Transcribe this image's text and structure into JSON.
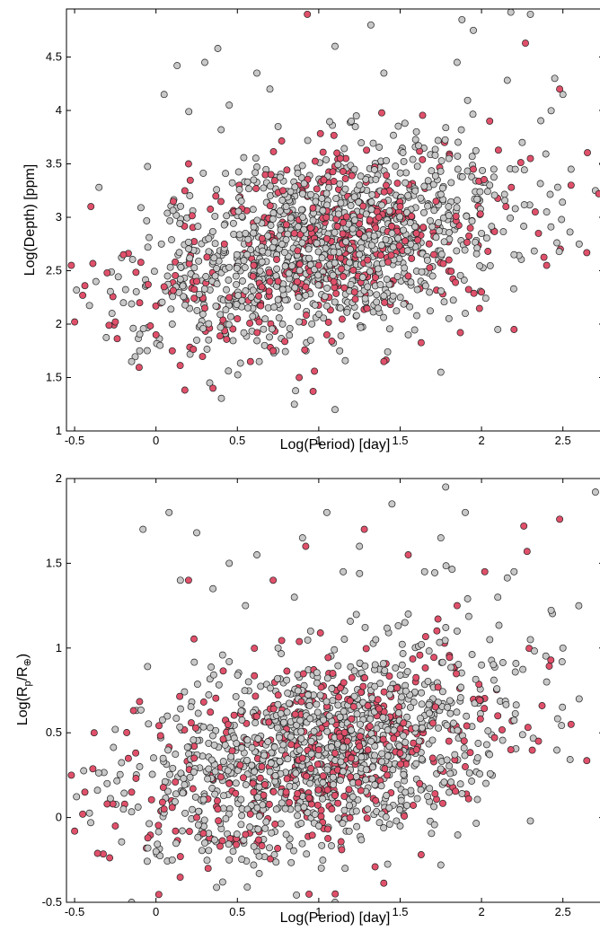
{
  "chart_data": [
    {
      "type": "scatter",
      "title": "",
      "xlabel": "Log(Period) [day]",
      "ylabel": "Log(Depth) [ppm]",
      "xlim": [
        -0.55,
        2.75
      ],
      "ylim": [
        1,
        4.95
      ],
      "xticks": [
        "-0.5",
        "0",
        "0.5",
        "1",
        "1.5",
        "2",
        "2.5"
      ],
      "yticks": [
        "1",
        "1.5",
        "2",
        "2.5",
        "3",
        "3.5",
        "4",
        "4.5"
      ],
      "grid": false,
      "legend": "none",
      "series": [
        {
          "color": "#c8c8c8",
          "points": [
            [
              -0.27,
              2.1
            ],
            [
              -0.2,
              2.2
            ],
            [
              -0.15,
              1.65
            ],
            [
              -0.1,
              1.75
            ],
            [
              -0.35,
              3.28
            ],
            [
              -0.05,
              2.72
            ],
            [
              0.1,
              2.0
            ],
            [
              0.15,
              2.42
            ],
            [
              0.25,
              1.85
            ],
            [
              0.33,
              1.45
            ],
            [
              0.4,
              3.82
            ],
            [
              0.45,
              4.05
            ],
            [
              0.55,
              2.85
            ],
            [
              0.6,
              3.35
            ],
            [
              0.7,
              4.2
            ],
            [
              0.75,
              3.85
            ],
            [
              0.8,
              3.1
            ],
            [
              0.85,
              1.25
            ],
            [
              0.95,
              1.85
            ],
            [
              1.1,
              1.2
            ],
            [
              1.1,
              4.6
            ],
            [
              1.2,
              3.9
            ],
            [
              1.25,
              3.3
            ],
            [
              1.3,
              2.35
            ],
            [
              1.4,
              4.35
            ],
            [
              1.45,
              2.85
            ],
            [
              1.55,
              1.9
            ],
            [
              1.6,
              3.8
            ],
            [
              1.7,
              2.45
            ],
            [
              1.75,
              1.55
            ],
            [
              1.8,
              3.55
            ],
            [
              1.85,
              4.45
            ],
            [
              1.9,
              2.1
            ],
            [
              1.95,
              4.75
            ],
            [
              2.0,
              2.85
            ],
            [
              2.05,
              3.3
            ],
            [
              2.1,
              1.95
            ],
            [
              2.2,
              2.65
            ],
            [
              2.25,
              3.7
            ],
            [
              2.3,
              4.9
            ],
            [
              2.4,
              3.05
            ],
            [
              2.5,
              4.15
            ],
            [
              2.55,
              3.45
            ],
            [
              2.6,
              2.75
            ],
            [
              2.7,
              3.25
            ],
            [
              0.05,
              4.15
            ],
            [
              0.13,
              4.42
            ],
            [
              0.3,
              4.45
            ],
            [
              0.38,
              4.58
            ],
            [
              0.62,
              4.35
            ],
            [
              1.32,
              4.8
            ],
            [
              1.88,
              4.85
            ],
            [
              2.18,
              4.92
            ],
            [
              2.45,
              4.3
            ]
          ]
        },
        {
          "color": "#e0506a",
          "points": [
            [
              -0.52,
              2.55
            ],
            [
              -0.5,
              2.02
            ],
            [
              -0.45,
              2.27
            ],
            [
              -0.4,
              3.1
            ],
            [
              -0.3,
              2.48
            ],
            [
              -0.25,
              2.02
            ],
            [
              -0.2,
              2.65
            ],
            [
              -0.1,
              2.2
            ],
            [
              0.0,
              1.9
            ],
            [
              0.05,
              2.35
            ],
            [
              0.1,
              1.75
            ],
            [
              0.2,
              3.5
            ],
            [
              0.3,
              2.15
            ],
            [
              0.35,
              1.4
            ],
            [
              0.42,
              2.75
            ],
            [
              0.5,
              2.05
            ],
            [
              0.58,
              1.65
            ],
            [
              0.65,
              2.35
            ],
            [
              0.72,
              1.75
            ],
            [
              0.78,
              3.25
            ],
            [
              0.88,
              1.5
            ],
            [
              0.93,
              4.9
            ],
            [
              1.0,
              2.55
            ],
            [
              1.05,
              1.9
            ],
            [
              1.15,
              2.95
            ],
            [
              1.22,
              2.3
            ],
            [
              1.35,
              2.9
            ],
            [
              1.4,
              1.65
            ],
            [
              1.5,
              3.1
            ],
            [
              1.55,
              2.45
            ],
            [
              1.6,
              2.85
            ],
            [
              1.72,
              3.15
            ],
            [
              1.8,
              2.6
            ],
            [
              1.87,
              1.92
            ],
            [
              1.95,
              3.45
            ],
            [
              2.0,
              2.3
            ],
            [
              2.05,
              3.9
            ],
            [
              2.15,
              3.1
            ],
            [
              2.2,
              1.95
            ],
            [
              2.27,
              4.63
            ],
            [
              2.3,
              3.55
            ],
            [
              2.35,
              2.85
            ],
            [
              2.4,
              2.55
            ],
            [
              2.48,
              4.2
            ],
            [
              2.55,
              3.3
            ],
            [
              2.72,
              3.22
            ],
            [
              2.75,
              3.08
            ],
            [
              0.85,
              2.85
            ],
            [
              0.95,
              2.9
            ],
            [
              1.05,
              2.8
            ],
            [
              1.25,
              2.85
            ],
            [
              1.3,
              2.6
            ],
            [
              0.6,
              2.55
            ],
            [
              0.7,
              2.4
            ],
            [
              0.45,
              2.25
            ],
            [
              0.25,
              2.4
            ]
          ]
        }
      ]
    },
    {
      "type": "scatter",
      "title": "",
      "xlabel": "Log(Period) [day]",
      "ylabel": "Log(R_p/R_⊕)",
      "ylabel_main": "Log(R",
      "ylabel_sub1": "p",
      "ylabel_mid": "/R",
      "ylabel_sub2": "⊕",
      "ylabel_close": ")",
      "xlim": [
        -0.55,
        2.75
      ],
      "ylim": [
        -0.5,
        2
      ],
      "xticks": [
        "-0.5",
        "0",
        "0.5",
        "1",
        "1.5",
        "2",
        "2.5"
      ],
      "yticks": [
        "-0.5",
        "0",
        "0.5",
        "1",
        "1.5",
        "2"
      ],
      "grid": false,
      "legend": "none",
      "series": [
        {
          "color": "#c8c8c8",
          "points": [
            [
              -0.3,
              0.2
            ],
            [
              -0.2,
              0.05
            ],
            [
              -0.1,
              0.3
            ],
            [
              -0.05,
              -0.18
            ],
            [
              -0.08,
              1.7
            ],
            [
              0.08,
              1.8
            ],
            [
              0.15,
              1.4
            ],
            [
              0.25,
              1.68
            ],
            [
              0.35,
              1.35
            ],
            [
              0.45,
              1.5
            ],
            [
              0.55,
              1.25
            ],
            [
              0.62,
              1.55
            ],
            [
              0.75,
              1.0
            ],
            [
              0.85,
              1.3
            ],
            [
              0.9,
              1.65
            ],
            [
              0.95,
              1.1
            ],
            [
              1.05,
              1.8
            ],
            [
              1.15,
              1.45
            ],
            [
              1.25,
              1.6
            ],
            [
              1.35,
              1.05
            ],
            [
              1.45,
              1.85
            ],
            [
              1.55,
              1.2
            ],
            [
              1.65,
              1.45
            ],
            [
              1.75,
              1.65
            ],
            [
              1.85,
              1.1
            ],
            [
              1.9,
              1.8
            ],
            [
              2.0,
              0.9
            ],
            [
              2.1,
              1.3
            ],
            [
              2.2,
              1.45
            ],
            [
              2.3,
              1.05
            ],
            [
              2.4,
              0.8
            ],
            [
              2.5,
              1.0
            ],
            [
              2.6,
              0.7
            ],
            [
              2.7,
              1.92
            ],
            [
              0.0,
              -0.2
            ],
            [
              0.1,
              -0.25
            ],
            [
              0.3,
              -0.15
            ],
            [
              0.45,
              -0.25
            ],
            [
              0.6,
              -0.28
            ],
            [
              0.8,
              -0.1
            ],
            [
              1.0,
              -0.05
            ],
            [
              1.1,
              -0.5
            ],
            [
              1.3,
              0.05
            ],
            [
              1.5,
              -0.05
            ],
            [
              1.75,
              -0.28
            ],
            [
              2.3,
              -0.02
            ],
            [
              -0.15,
              -0.5
            ],
            [
              1.78,
              1.95
            ]
          ]
        },
        {
          "color": "#e0506a",
          "points": [
            [
              -0.5,
              -0.08
            ],
            [
              -0.52,
              0.25
            ],
            [
              -0.45,
              0.02
            ],
            [
              -0.38,
              0.5
            ],
            [
              -0.3,
              0.08
            ],
            [
              -0.25,
              -0.05
            ],
            [
              -0.15,
              0.15
            ],
            [
              -0.05,
              -0.12
            ],
            [
              0.05,
              0.05
            ],
            [
              0.12,
              -0.08
            ],
            [
              0.2,
              1.4
            ],
            [
              0.25,
              0.0
            ],
            [
              0.32,
              -0.3
            ],
            [
              0.38,
              0.05
            ],
            [
              0.45,
              0.2
            ],
            [
              0.55,
              -0.1
            ],
            [
              0.65,
              0.3
            ],
            [
              0.72,
              1.4
            ],
            [
              0.8,
              0.15
            ],
            [
              0.92,
              1.6
            ],
            [
              1.0,
              0.4
            ],
            [
              1.08,
              0.05
            ],
            [
              1.2,
              0.35
            ],
            [
              1.28,
              1.7
            ],
            [
              1.35,
              0.1
            ],
            [
              1.42,
              0.25
            ],
            [
              1.55,
              1.55
            ],
            [
              1.62,
              0.2
            ],
            [
              1.7,
              0.35
            ],
            [
              1.85,
              1.25
            ],
            [
              1.9,
              0.3
            ],
            [
              2.02,
              1.45
            ],
            [
              2.1,
              0.6
            ],
            [
              2.18,
              0.4
            ],
            [
              2.26,
              1.72
            ],
            [
              2.28,
              1.57
            ],
            [
              2.35,
              0.45
            ],
            [
              2.48,
              1.76
            ],
            [
              2.55,
              0.55
            ],
            [
              2.75,
              0.7
            ],
            [
              2.75,
              0.51
            ],
            [
              1.1,
              0.38
            ],
            [
              1.25,
              0.42
            ],
            [
              0.9,
              0.35
            ],
            [
              0.6,
              0.15
            ],
            [
              1.5,
              0.38
            ],
            [
              1.8,
              0.45
            ]
          ]
        }
      ]
    }
  ]
}
